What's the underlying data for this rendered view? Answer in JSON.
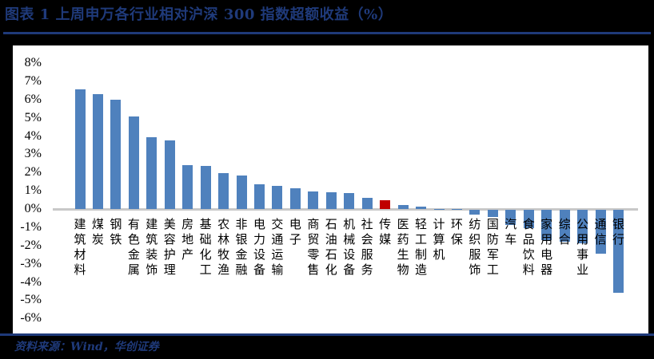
{
  "header": {
    "title": "图表 1   上周申万各行业相对沪深 300 指数超额收益（%）"
  },
  "footer": {
    "source": "资料来源：Wind，华创证券"
  },
  "colors": {
    "bar_default": "#4f81bd",
    "bar_highlight": "#c00000",
    "rule": "#1f3a7a",
    "axis": "#c8c8c8"
  },
  "chart_data": {
    "type": "bar",
    "title": "上周申万各行业相对沪深 300 指数超额收益（%）",
    "xlabel": "",
    "ylabel": "",
    "ylim": [
      -6,
      8
    ],
    "yticks": [
      "8%",
      "7%",
      "6%",
      "5%",
      "4%",
      "3%",
      "2%",
      "1%",
      "0%",
      "-1%",
      "-2%",
      "-3%",
      "-4%",
      "-5%",
      "-6%"
    ],
    "grid": false,
    "legend": null,
    "highlight_category": "传媒",
    "categories": [
      "建筑材料",
      "煤炭",
      "钢铁",
      "有色金属",
      "建筑装饰",
      "美容护理",
      "房地产",
      "基础化工",
      "农林牧渔",
      "非银金融",
      "电力设备",
      "交通运输",
      "电子",
      "商贸零售",
      "石油石化",
      "机械设备",
      "社会服务",
      "传媒",
      "医药生物",
      "轻工制造",
      "计算机",
      "环保",
      "纺织服饰",
      "国防军工",
      "汽车",
      "食品饮料",
      "家用电器",
      "综合",
      "公用事业",
      "通信",
      "银行"
    ],
    "values": [
      6.55,
      6.3,
      6.0,
      5.05,
      3.95,
      3.75,
      2.4,
      2.35,
      1.95,
      1.85,
      1.35,
      1.25,
      1.15,
      0.95,
      0.9,
      0.88,
      0.6,
      0.48,
      0.22,
      0.15,
      0.02,
      0.01,
      -0.25,
      -0.4,
      -0.85,
      -1.0,
      -1.65,
      -1.75,
      -1.85,
      -2.4,
      -4.55
    ]
  }
}
